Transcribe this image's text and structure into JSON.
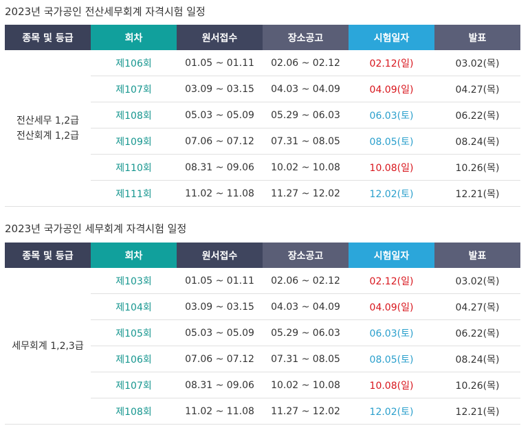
{
  "sections": [
    {
      "title": "2023년 국가공인 전산세무회계 자격시험 일정",
      "table": {
        "header": [
          "종목 및 등급",
          "회차",
          "원서접수",
          "장소공고",
          "시험일자",
          "발표"
        ],
        "group": [
          "전산세무 1,2급",
          "전산회계 1,2급"
        ],
        "rows": [
          [
            "제106회",
            "01.05 ~ 01.11",
            "02.06 ~ 02.12",
            "02.12(일)",
            "03.02(목)"
          ],
          [
            "제107회",
            "03.09 ~ 03.15",
            "04.03 ~ 04.09",
            "04.09(일)",
            "04.27(목)"
          ],
          [
            "제108회",
            "05.03 ~ 05.09",
            "05.29 ~ 06.03",
            "06.03(토)",
            "06.22(목)"
          ],
          [
            "제109회",
            "07.06 ~ 07.12",
            "07.31 ~ 08.05",
            "08.05(토)",
            "08.24(목)"
          ],
          [
            "제110회",
            "08.31 ~ 09.06",
            "10.02 ~ 10.08",
            "10.08(일)",
            "10.26(목)"
          ],
          [
            "제111회",
            "11.02 ~ 11.08",
            "11.27 ~ 12.02",
            "12.02(토)",
            "12.21(목)"
          ]
        ]
      }
    },
    {
      "title": "2023년 국가공인 세무회계 자격시험 일정",
      "table": {
        "header": [
          "종목 및 등급",
          "회차",
          "원서접수",
          "장소공고",
          "시험일자",
          "발표"
        ],
        "group": [
          "세무회계 1,2,3급"
        ],
        "rows": [
          [
            "제103회",
            "01.05 ~ 01.11",
            "02.06 ~ 02.12",
            "02.12(일)",
            "03.02(목)"
          ],
          [
            "제104회",
            "03.09 ~ 03.15",
            "04.03 ~ 04.09",
            "04.09(일)",
            "04.27(목)"
          ],
          [
            "제105회",
            "05.03 ~ 05.09",
            "05.29 ~ 06.03",
            "06.03(토)",
            "06.22(목)"
          ],
          [
            "제106회",
            "07.06 ~ 07.12",
            "07.31 ~ 08.05",
            "08.05(토)",
            "08.24(목)"
          ],
          [
            "제107회",
            "08.31 ~ 09.06",
            "10.02 ~ 10.08",
            "10.08(일)",
            "10.26(목)"
          ],
          [
            "제108회",
            "11.02 ~ 11.08",
            "11.27 ~ 12.02",
            "12.02(토)",
            "12.21(목)"
          ]
        ]
      }
    }
  ]
}
